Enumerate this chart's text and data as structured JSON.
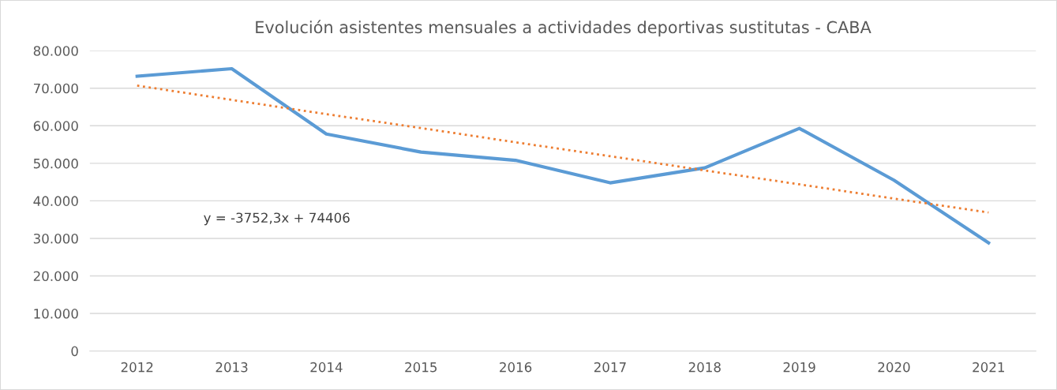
{
  "chart_data": {
    "type": "line",
    "title": "Evolución asistentes mensuales a actividades deportivas sustitutas - CABA",
    "categories": [
      "2012",
      "2013",
      "2014",
      "2015",
      "2016",
      "2017",
      "2018",
      "2019",
      "2020",
      "2021"
    ],
    "series": [
      {
        "color": "#5b9bd5",
        "values": [
          73200,
          75200,
          57800,
          53000,
          50800,
          44800,
          48800,
          59300,
          45500,
          28800
        ],
        "line_style": "solid"
      },
      {
        "color": "#ed7d31",
        "values": [
          70700,
          66900,
          63100,
          59400,
          55600,
          51900,
          48100,
          44400,
          40600,
          36900
        ],
        "line_style": "dotted"
      }
    ],
    "ylim": [
      0,
      80000
    ],
    "yticks": [
      {
        "value": 0,
        "label": "0"
      },
      {
        "value": 10000,
        "label": "10.000"
      },
      {
        "value": 20000,
        "label": "20.000"
      },
      {
        "value": 30000,
        "label": "30.000"
      },
      {
        "value": 40000,
        "label": "40.000"
      },
      {
        "value": 50000,
        "label": "50.000"
      },
      {
        "value": 60000,
        "label": "60.000"
      },
      {
        "value": 70000,
        "label": "70.000"
      },
      {
        "value": 80000,
        "label": "80.000"
      }
    ],
    "grid": "y",
    "legend": false,
    "annotations": [
      "y = -3752,3x + 74406"
    ]
  }
}
